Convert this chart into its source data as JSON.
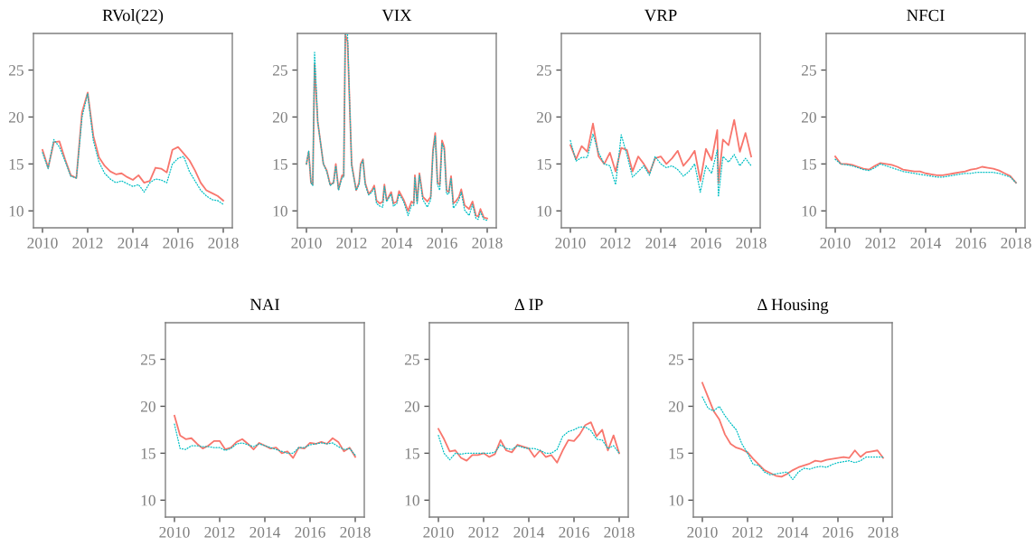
{
  "chart_data": [
    {
      "type": "line",
      "title": "RVol(22)",
      "x": [
        2010,
        2010.25,
        2010.5,
        2010.75,
        2011,
        2011.25,
        2011.5,
        2011.75,
        2012,
        2012.25,
        2012.5,
        2012.75,
        2013,
        2013.25,
        2013.5,
        2013.75,
        2014,
        2014.25,
        2014.5,
        2014.75,
        2015,
        2015.25,
        2015.5,
        2015.75,
        2016,
        2016.25,
        2016.5,
        2016.75,
        2017,
        2017.25,
        2017.5,
        2017.75,
        2018
      ],
      "xlim": [
        2009.6,
        2018.4
      ],
      "ylim": [
        8.2,
        28.9
      ],
      "xticks": [
        2010,
        2012,
        2014,
        2016,
        2018
      ],
      "yticks": [
        10,
        15,
        20,
        25
      ],
      "series": [
        {
          "color": "#f8766d",
          "line_style": "solid",
          "values": [
            16.5,
            14.6,
            17.3,
            17.4,
            15.5,
            13.8,
            13.5,
            20.5,
            22.6,
            18.0,
            15.7,
            14.8,
            14.2,
            13.9,
            14.0,
            13.6,
            13.3,
            13.8,
            13.0,
            13.2,
            14.6,
            14.5,
            14.1,
            16.5,
            16.8,
            16.1,
            15.4,
            14.3,
            13.0,
            12.2,
            11.9,
            11.6,
            11.1
          ]
        },
        {
          "color": "#00bfc4",
          "line_style": "dotted",
          "values": [
            16.2,
            14.5,
            17.6,
            16.8,
            15.3,
            13.7,
            13.5,
            20.0,
            22.5,
            17.5,
            15.2,
            14.0,
            13.4,
            13.0,
            13.2,
            12.9,
            12.6,
            12.8,
            12.0,
            13.0,
            13.4,
            13.3,
            13.0,
            15.0,
            15.6,
            15.8,
            14.2,
            13.2,
            12.2,
            11.6,
            11.2,
            11.1,
            10.7
          ]
        }
      ]
    },
    {
      "type": "line",
      "title": "VIX",
      "x": [
        2010,
        2010.1,
        2010.2,
        2010.28,
        2010.36,
        2010.5,
        2010.75,
        2010.9,
        2011.05,
        2011.2,
        2011.3,
        2011.42,
        2011.58,
        2011.65,
        2011.72,
        2011.82,
        2012.0,
        2012.2,
        2012.33,
        2012.4,
        2012.5,
        2012.6,
        2012.75,
        2012.9,
        2013.0,
        2013.1,
        2013.25,
        2013.38,
        2013.45,
        2013.55,
        2013.75,
        2013.85,
        2014.0,
        2014.1,
        2014.3,
        2014.5,
        2014.65,
        2014.75,
        2014.8,
        2014.9,
        2015.0,
        2015.15,
        2015.35,
        2015.5,
        2015.6,
        2015.7,
        2015.8,
        2015.9,
        2016.0,
        2016.1,
        2016.2,
        2016.3,
        2016.4,
        2016.5,
        2016.6,
        2016.75,
        2016.85,
        2017.0,
        2017.2,
        2017.35,
        2017.5,
        2017.6,
        2017.7,
        2017.85,
        2018.0
      ],
      "xlim": [
        2009.6,
        2018.4
      ],
      "ylim": [
        8.2,
        28.9
      ],
      "xticks": [
        2010,
        2012,
        2014,
        2016,
        2018
      ],
      "yticks": [
        10,
        15,
        20,
        25
      ],
      "series": [
        {
          "color": "#f8766d",
          "line_style": "solid",
          "values": [
            15,
            16.3,
            13,
            12.8,
            25.6,
            19.5,
            15,
            14.3,
            12.8,
            13,
            15,
            12.3,
            13.8,
            13.7,
            28.8,
            28,
            15,
            12.2,
            13,
            15,
            15.5,
            13,
            11.8,
            12.2,
            12.7,
            11.1,
            10.8,
            11,
            12.8,
            11.1,
            12,
            10.8,
            11,
            12.1,
            11.2,
            10,
            11,
            10.8,
            13.8,
            11,
            14,
            11.5,
            11,
            11.5,
            16.5,
            18.3,
            13,
            12.8,
            17.5,
            16.8,
            12.2,
            12,
            13.7,
            10.8,
            11,
            11.5,
            12.3,
            10.6,
            10.2,
            11,
            9.5,
            9.4,
            10.2,
            9.3,
            9.2
          ]
        },
        {
          "color": "#00bfc4",
          "line_style": "dotted",
          "values": [
            15,
            16.4,
            13,
            12.7,
            26.9,
            19.5,
            15,
            14.2,
            12.7,
            13,
            14.8,
            12.2,
            13.6,
            13.6,
            28.8,
            28.8,
            14.8,
            12.2,
            12.8,
            14.8,
            15.4,
            12.8,
            11.7,
            12,
            12.5,
            10.8,
            10.5,
            10.4,
            12.6,
            11,
            11.8,
            10.5,
            10.8,
            11.8,
            11,
            9.5,
            10.6,
            10.6,
            13.6,
            10.7,
            13.8,
            11.2,
            10.4,
            11.2,
            16.2,
            18,
            12.8,
            12.2,
            17.2,
            16.5,
            11.8,
            11.8,
            13.5,
            10.3,
            10.6,
            11.2,
            12,
            10.1,
            9.5,
            10.7,
            9.2,
            9.1,
            9.9,
            9.1,
            9.0
          ]
        }
      ]
    },
    {
      "type": "line",
      "title": "VRP",
      "x": [
        2010,
        2010.25,
        2010.5,
        2010.75,
        2011,
        2011.25,
        2011.5,
        2011.75,
        2012,
        2012.25,
        2012.5,
        2012.75,
        2013,
        2013.25,
        2013.5,
        2013.75,
        2014,
        2014.25,
        2014.5,
        2014.75,
        2015,
        2015.25,
        2015.5,
        2015.75,
        2016,
        2016.25,
        2016.5,
        2016.55,
        2016.75,
        2017,
        2017.25,
        2017.5,
        2017.75,
        2018
      ],
      "xlim": [
        2009.6,
        2018.4
      ],
      "ylim": [
        8.2,
        28.9
      ],
      "xticks": [
        2010,
        2012,
        2014,
        2016,
        2018
      ],
      "yticks": [
        10,
        15,
        20,
        25
      ],
      "series": [
        {
          "color": "#f8766d",
          "line_style": "solid",
          "values": [
            17.0,
            15.5,
            16.9,
            16.3,
            19.3,
            15.8,
            15.0,
            16.2,
            14.2,
            16.7,
            16.5,
            14.2,
            15.8,
            15.0,
            14.0,
            15.6,
            15.8,
            15.0,
            15.6,
            16.4,
            14.8,
            15.5,
            16.4,
            13.2,
            16.6,
            15.4,
            18.6,
            13.0,
            17.6,
            17.0,
            19.7,
            16.3,
            18.3,
            15.8
          ]
        },
        {
          "color": "#00bfc4",
          "line_style": "dotted",
          "values": [
            17.5,
            15.3,
            15.7,
            15.7,
            18.2,
            16.2,
            15.0,
            14.8,
            12.8,
            18.1,
            16.0,
            13.6,
            14.2,
            14.8,
            13.8,
            15.8,
            15.0,
            14.6,
            14.8,
            14.4,
            13.7,
            14.2,
            15.0,
            12.0,
            14.8,
            14.0,
            16.5,
            11.5,
            15.8,
            15.2,
            16.0,
            14.8,
            15.6,
            14.8
          ]
        }
      ]
    },
    {
      "type": "line",
      "title": "NFCI",
      "x": [
        2010,
        2010.25,
        2010.5,
        2010.75,
        2011,
        2011.25,
        2011.5,
        2011.75,
        2012,
        2012.25,
        2012.5,
        2012.75,
        2013,
        2013.25,
        2013.5,
        2013.75,
        2014,
        2014.25,
        2014.5,
        2014.75,
        2015,
        2015.25,
        2015.5,
        2015.75,
        2016,
        2016.25,
        2016.5,
        2016.75,
        2017,
        2017.25,
        2017.5,
        2017.75,
        2018
      ],
      "xlim": [
        2009.6,
        2018.4
      ],
      "ylim": [
        8.2,
        28.9
      ],
      "xticks": [
        2010,
        2012,
        2014,
        2016,
        2018
      ],
      "yticks": [
        10,
        15,
        20,
        25
      ],
      "series": [
        {
          "color": "#f8766d",
          "line_style": "solid",
          "values": [
            15.8,
            15.0,
            15.0,
            14.9,
            14.7,
            14.5,
            14.4,
            14.8,
            15.1,
            15.0,
            14.9,
            14.7,
            14.4,
            14.3,
            14.2,
            14.2,
            14.0,
            13.9,
            13.8,
            13.8,
            13.9,
            14.0,
            14.1,
            14.2,
            14.4,
            14.5,
            14.7,
            14.6,
            14.5,
            14.3,
            14.0,
            13.7,
            13.0
          ]
        },
        {
          "color": "#00bfc4",
          "line_style": "dotted",
          "values": [
            15.5,
            15.0,
            14.9,
            14.8,
            14.6,
            14.4,
            14.3,
            14.6,
            15.0,
            14.8,
            14.6,
            14.4,
            14.2,
            14.1,
            14.0,
            13.9,
            13.8,
            13.7,
            13.6,
            13.6,
            13.7,
            13.8,
            13.9,
            14.0,
            14.0,
            14.1,
            14.1,
            14.1,
            14.1,
            14.0,
            13.8,
            13.6,
            13.0
          ]
        }
      ]
    },
    {
      "type": "line",
      "title": "NAI",
      "x": [
        2010,
        2010.25,
        2010.5,
        2010.75,
        2011,
        2011.25,
        2011.5,
        2011.75,
        2012,
        2012.25,
        2012.5,
        2012.75,
        2013,
        2013.25,
        2013.5,
        2013.75,
        2014,
        2014.25,
        2014.5,
        2014.75,
        2015,
        2015.25,
        2015.5,
        2015.75,
        2016,
        2016.25,
        2016.5,
        2016.75,
        2017,
        2017.25,
        2017.5,
        2017.75,
        2018
      ],
      "xlim": [
        2009.6,
        2018.4
      ],
      "ylim": [
        8.2,
        28.9
      ],
      "xticks": [
        2010,
        2012,
        2014,
        2016,
        2018
      ],
      "yticks": [
        10,
        15,
        20,
        25
      ],
      "series": [
        {
          "color": "#f8766d",
          "line_style": "solid",
          "values": [
            19.0,
            16.9,
            16.5,
            16.6,
            16.0,
            15.5,
            15.8,
            16.3,
            16.3,
            15.4,
            15.6,
            16.2,
            16.5,
            16.0,
            15.4,
            16.1,
            15.8,
            15.5,
            15.6,
            15.0,
            15.2,
            14.5,
            15.6,
            15.5,
            16.1,
            16.0,
            16.2,
            16.0,
            16.6,
            16.2,
            15.2,
            15.6,
            14.6
          ]
        },
        {
          "color": "#00bfc4",
          "line_style": "dotted",
          "values": [
            18.1,
            15.5,
            15.4,
            15.8,
            15.8,
            15.7,
            15.7,
            15.6,
            15.6,
            15.3,
            15.5,
            16.0,
            16.1,
            15.9,
            15.7,
            16.0,
            15.8,
            15.6,
            15.4,
            15.2,
            15.0,
            15.0,
            15.6,
            15.6,
            15.9,
            16.0,
            16.1,
            16.0,
            16.1,
            15.7,
            15.4,
            15.5,
            14.8
          ]
        }
      ]
    },
    {
      "type": "line",
      "title": "Δ IP",
      "x": [
        2010,
        2010.25,
        2010.5,
        2010.75,
        2011,
        2011.25,
        2011.5,
        2011.75,
        2012,
        2012.25,
        2012.5,
        2012.75,
        2013,
        2013.25,
        2013.5,
        2013.75,
        2014,
        2014.25,
        2014.5,
        2014.75,
        2015,
        2015.25,
        2015.5,
        2015.75,
        2016,
        2016.25,
        2016.5,
        2016.75,
        2017,
        2017.25,
        2017.5,
        2017.75,
        2018
      ],
      "xlim": [
        2009.6,
        2018.4
      ],
      "ylim": [
        8.2,
        28.9
      ],
      "xticks": [
        2010,
        2012,
        2014,
        2016,
        2018
      ],
      "yticks": [
        10,
        15,
        20,
        25
      ],
      "series": [
        {
          "color": "#f8766d",
          "line_style": "solid",
          "values": [
            17.6,
            16.5,
            15.2,
            15.3,
            14.5,
            14.2,
            14.8,
            14.8,
            15.0,
            14.6,
            14.9,
            16.4,
            15.3,
            15.1,
            15.9,
            15.7,
            15.5,
            14.6,
            15.3,
            14.6,
            14.8,
            14.0,
            15.3,
            16.4,
            16.3,
            17.0,
            18.0,
            18.3,
            16.8,
            17.5,
            15.3,
            16.9,
            15.0
          ]
        },
        {
          "color": "#00bfc4",
          "line_style": "dotted",
          "values": [
            16.9,
            15.0,
            14.3,
            15.0,
            14.9,
            15.0,
            15.0,
            15.0,
            15.0,
            15.0,
            15.1,
            15.9,
            15.5,
            15.4,
            15.8,
            15.6,
            15.5,
            15.5,
            15.3,
            15.0,
            15.0,
            15.4,
            16.8,
            17.3,
            17.5,
            17.8,
            17.8,
            17.4,
            16.5,
            16.4,
            15.5,
            15.8,
            15.0
          ]
        }
      ]
    },
    {
      "type": "line",
      "title": "Δ Housing",
      "x": [
        2010,
        2010.25,
        2010.5,
        2010.75,
        2011,
        2011.25,
        2011.5,
        2011.75,
        2012,
        2012.25,
        2012.5,
        2012.75,
        2013,
        2013.25,
        2013.5,
        2013.75,
        2014,
        2014.25,
        2014.5,
        2014.75,
        2015,
        2015.25,
        2015.5,
        2015.75,
        2016,
        2016.25,
        2016.5,
        2016.75,
        2017,
        2017.25,
        2017.5,
        2017.75,
        2018
      ],
      "xlim": [
        2009.6,
        2018.4
      ],
      "ylim": [
        8.2,
        28.9
      ],
      "xticks": [
        2010,
        2012,
        2014,
        2016,
        2018
      ],
      "yticks": [
        10,
        15,
        20,
        25
      ],
      "series": [
        {
          "color": "#f8766d",
          "line_style": "solid",
          "values": [
            22.5,
            21.0,
            19.5,
            18.6,
            17.0,
            16.0,
            15.6,
            15.4,
            15.1,
            14.4,
            13.8,
            13.2,
            12.9,
            12.6,
            12.5,
            12.8,
            13.2,
            13.5,
            13.7,
            13.9,
            14.2,
            14.1,
            14.3,
            14.4,
            14.5,
            14.6,
            14.5,
            15.3,
            14.6,
            15.1,
            15.2,
            15.3,
            14.5
          ]
        },
        {
          "color": "#00bfc4",
          "line_style": "dotted",
          "values": [
            21.0,
            19.8,
            19.5,
            20.0,
            19.0,
            18.2,
            17.5,
            16.0,
            15.0,
            13.8,
            13.7,
            13.0,
            12.7,
            12.8,
            12.9,
            13.0,
            12.2,
            13.0,
            13.4,
            13.3,
            13.5,
            13.6,
            13.5,
            13.8,
            14.0,
            14.1,
            14.2,
            14.0,
            14.2,
            14.6,
            14.6,
            14.6,
            14.6
          ]
        }
      ]
    }
  ]
}
